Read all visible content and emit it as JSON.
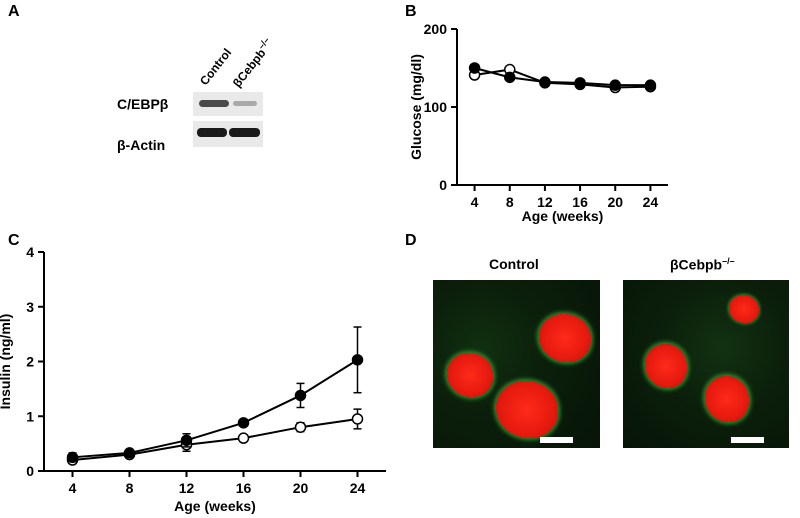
{
  "panels": {
    "A": {
      "letter": "A",
      "columns": [
        "Control",
        "βCebpb"
      ],
      "column_superscript": "–/–",
      "rows": [
        "C/EBPβ",
        "β-Actin"
      ]
    },
    "B": {
      "letter": "B"
    },
    "C": {
      "letter": "C"
    },
    "D": {
      "letter": "D",
      "labels": [
        "Control",
        "βCebpb"
      ],
      "label_superscript": "–/–"
    }
  },
  "chart_data": [
    {
      "id": "B",
      "type": "line",
      "xlabel": "Age (weeks)",
      "ylabel": "Glucose (mg/dl)",
      "x": [
        4,
        8,
        12,
        16,
        20,
        24
      ],
      "xlim": [
        2,
        26
      ],
      "ylim": [
        0,
        200
      ],
      "yticks": [
        0,
        100,
        200
      ],
      "series": [
        {
          "marker": "filled",
          "values": [
            150,
            138,
            132,
            131,
            128,
            128
          ]
        },
        {
          "marker": "open",
          "values": [
            141,
            148,
            131,
            129,
            125,
            126
          ]
        }
      ]
    },
    {
      "id": "C",
      "type": "line",
      "xlabel": "Age (weeks)",
      "ylabel": "Insulin (ng/ml)",
      "x": [
        4,
        8,
        12,
        16,
        20,
        24
      ],
      "xlim": [
        2,
        26
      ],
      "ylim": [
        0,
        4
      ],
      "yticks": [
        0,
        1,
        2,
        3,
        4
      ],
      "series": [
        {
          "marker": "filled",
          "values": [
            0.25,
            0.33,
            0.56,
            0.88,
            1.38,
            2.03
          ],
          "errors": [
            0.08,
            0.05,
            0.12,
            0.05,
            0.22,
            0.6
          ]
        },
        {
          "marker": "open",
          "values": [
            0.2,
            0.3,
            0.48,
            0.6,
            0.8,
            0.95
          ],
          "errors": [
            0.05,
            0.04,
            0.12,
            0.05,
            0.08,
            0.18
          ]
        }
      ]
    }
  ]
}
